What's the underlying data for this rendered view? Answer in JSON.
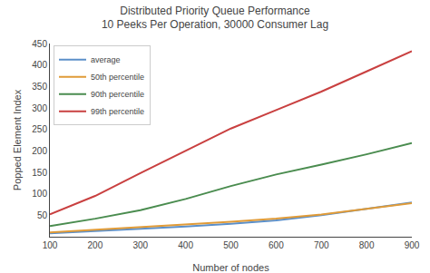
{
  "chart_data": {
    "type": "line",
    "title": "Distributed Priority Queue Performance",
    "subtitle": "10 Peeks Per Operation, 30000 Consumer Lag",
    "xlabel": "Number of nodes",
    "ylabel": "Popped Element Index",
    "x": [
      100,
      200,
      300,
      400,
      500,
      600,
      700,
      800,
      900
    ],
    "series": [
      {
        "name": "average",
        "color": "#5b8fc9",
        "values": [
          8,
          13,
          18,
          24,
          30,
          38,
          50,
          65,
          80
        ]
      },
      {
        "name": "50th percentile",
        "color": "#e09b38",
        "values": [
          10,
          16,
          22,
          28,
          35,
          42,
          52,
          65,
          78
        ]
      },
      {
        "name": "90th percentile",
        "color": "#4a8c4f",
        "values": [
          25,
          42,
          62,
          88,
          118,
          145,
          168,
          192,
          218
        ]
      },
      {
        "name": "99th percentile",
        "color": "#c94040",
        "values": [
          52,
          95,
          148,
          200,
          252,
          295,
          338,
          385,
          432
        ]
      }
    ],
    "xlim": [
      100,
      900
    ],
    "ylim": [
      0,
      450
    ],
    "xticks": [
      100,
      200,
      300,
      400,
      500,
      600,
      700,
      800,
      900
    ],
    "yticks": [
      50,
      100,
      150,
      200,
      250,
      300,
      350,
      400,
      450
    ],
    "grid": false,
    "legend": "upper left"
  }
}
